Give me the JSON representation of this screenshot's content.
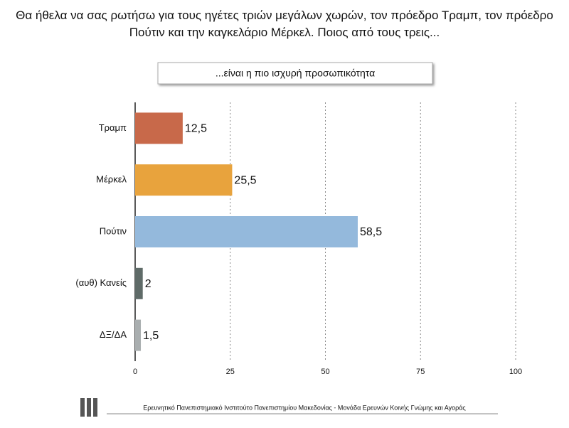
{
  "chart_data": {
    "type": "bar",
    "orientation": "horizontal",
    "title": "Θα ήθελα να σας ρωτήσω για τους ηγέτες τριών μεγάλων χωρών, τον πρόεδρο Τραμπ, τον πρόεδρο Πούτιν και την καγκελάριο Μέρκελ. Ποιος από τους τρεις...",
    "subtitle": "...είναι η πιο ισχυρή προσωπικότητα",
    "categories": [
      "Τραμπ",
      "Μέρκελ",
      "Πούτιν",
      "(αυθ) Κανείς",
      "ΔΞ/ΔΑ"
    ],
    "values": [
      12.5,
      25.5,
      58.5,
      2,
      1.5
    ],
    "value_labels": [
      "12,5",
      "25,5",
      "58,5",
      "2",
      "1,5"
    ],
    "colors": [
      "#c8694a",
      "#e8a33d",
      "#94b9dc",
      "#5f6b68",
      "#a9aeaf"
    ],
    "xlim": [
      0,
      100
    ],
    "xticks": [
      0,
      25,
      50,
      75,
      100
    ],
    "grid": true,
    "source": "Ερευνητικό Πανεπιστημιακό Ινστιτούτο Πανεπιστημίου Μακεδονίας - Μονάδα Ερευνών Κοινής Γνώμης και Αγοράς"
  }
}
